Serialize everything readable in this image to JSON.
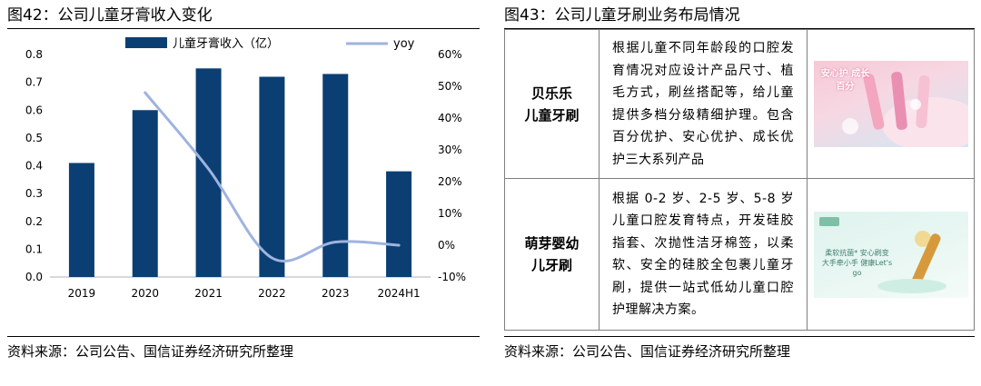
{
  "left_figure": {
    "title": "图42：公司儿童牙膏收入变化",
    "source": "资料来源：公司公告、国信证券经济研究所整理"
  },
  "right_figure": {
    "title": "图43：公司儿童牙刷业务布局情况",
    "source": "资料来源：公司公告、国信证券经济研究所整理",
    "rows": [
      {
        "name_lines": [
          "贝乐乐",
          "儿童牙刷"
        ],
        "description": "根据儿童不同年龄段的口腔发育情况对应设计产品尺寸、植毛方式，刷丝搭配等，给儿童提供多档分级精细护理。包含百分优护、安心优护、成长优护三大系列产品",
        "thumb_caption": "安心护 成长百分"
      },
      {
        "name_lines": [
          "萌芽婴幼",
          "儿牙刷"
        ],
        "description": "根据 0-2 岁、2-5 岁、5-8 岁儿童口腔发育特点，开发硅胶指套、次抛性洁牙棉签，以柔软、安全的硅胶全包裹儿童牙刷，提供一站式低幼儿童口腔护理解决方案。",
        "thumb_caption": "柔软抗菌* 安心刷变 大手牵小手 健康Let's go"
      }
    ]
  },
  "chart_data": {
    "type": "bar",
    "categories": [
      "2019",
      "2020",
      "2021",
      "2022",
      "2023",
      "2024H1"
    ],
    "series": [
      {
        "name": "儿童牙膏收入（亿）",
        "type": "bar",
        "axis": "left",
        "color": "#0b3f73",
        "values": [
          0.41,
          0.6,
          0.75,
          0.72,
          0.73,
          0.38
        ]
      },
      {
        "name": "yoy",
        "type": "line",
        "axis": "right",
        "color": "#9fb3df",
        "values": [
          null,
          0.48,
          0.24,
          -0.04,
          0.01,
          0.0
        ]
      }
    ],
    "y_left": {
      "lim": [
        0,
        0.8
      ],
      "ticks": [
        "0.0",
        "0.1",
        "0.2",
        "0.3",
        "0.4",
        "0.5",
        "0.6",
        "0.7",
        "0.8"
      ]
    },
    "y_right": {
      "lim": [
        -0.1,
        0.6
      ],
      "ticks": [
        "-10%",
        "0%",
        "10%",
        "20%",
        "30%",
        "40%",
        "50%",
        "60%"
      ]
    },
    "legend": "top",
    "grid": false
  }
}
